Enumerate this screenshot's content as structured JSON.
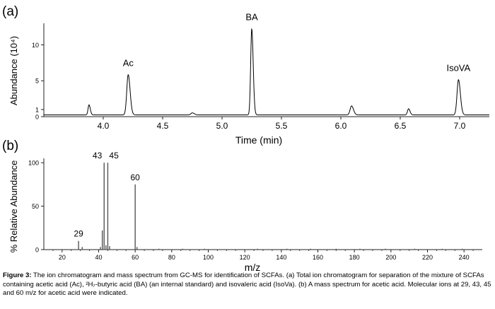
{
  "figure": {
    "caption_label": "Figure 3:",
    "caption_text": "The ion chromatogram and mass spectrum from GC-MS for identification of SCFAs. (a) Total ion chromatogram for separation of the mixture of SCFAs containing acetic acid (Ac), ²H₇-butyric acid (BA) (an internal standard) and isovaleric acid (IsoVa). (b) A mass spectrum for acetic acid. Molecular ions at 29, 43, 45 and 60 m/z for acetic acid were indicated."
  },
  "chart_data": [
    {
      "type": "line",
      "panel_label": "(a)",
      "xlabel": "Time (min)",
      "ylabel": "Abundance (10⁴)",
      "xlim": [
        3.5,
        7.25
      ],
      "ylim": [
        0,
        13
      ],
      "x_ticks": [
        4.0,
        4.5,
        5.0,
        5.5,
        6.0,
        6.5,
        7.0
      ],
      "x_tick_labels": [
        "4.0",
        "4.5",
        "5.0",
        "5.5",
        "6.0",
        "6.5",
        "7.0"
      ],
      "y_ticks": [
        0,
        1,
        5,
        10
      ],
      "y_tick_labels": [
        "0",
        "1",
        "5",
        "10"
      ],
      "baseline": 0.25,
      "peaks": [
        {
          "time": 3.88,
          "height": 1.4,
          "width": 0.008,
          "label": ""
        },
        {
          "time": 4.21,
          "height": 5.6,
          "width": 0.012,
          "label": "Ac"
        },
        {
          "time": 4.75,
          "height": 0.28,
          "width": 0.012,
          "label": ""
        },
        {
          "time": 5.25,
          "height": 12.0,
          "width": 0.009,
          "label": "BA"
        },
        {
          "time": 6.09,
          "height": 1.25,
          "width": 0.012,
          "label": ""
        },
        {
          "time": 6.57,
          "height": 0.85,
          "width": 0.009,
          "label": ""
        },
        {
          "time": 6.99,
          "height": 4.9,
          "width": 0.012,
          "label": "IsoVA"
        }
      ],
      "color": "#000000"
    },
    {
      "type": "bar",
      "panel_label": "(b)",
      "xlabel": "m/z",
      "ylabel": "% Relative Abundance",
      "xlim": [
        10,
        250
      ],
      "ylim": [
        0,
        105
      ],
      "x_ticks": [
        20,
        40,
        60,
        80,
        100,
        120,
        140,
        160,
        180,
        200,
        220,
        240
      ],
      "x_tick_labels": [
        "20",
        "40",
        "60",
        "80",
        "100",
        "120",
        "140",
        "160",
        "180",
        "200",
        "220",
        "240"
      ],
      "y_ticks": [
        0,
        50,
        100
      ],
      "y_tick_labels": [
        "0",
        "50",
        "100"
      ],
      "peaks": [
        {
          "mz": 29,
          "value": 10,
          "label": "29"
        },
        {
          "mz": 31,
          "value": 3,
          "label": ""
        },
        {
          "mz": 41,
          "value": 3,
          "label": ""
        },
        {
          "mz": 42,
          "value": 22,
          "label": ""
        },
        {
          "mz": 43,
          "value": 100,
          "label": "43"
        },
        {
          "mz": 44,
          "value": 5,
          "label": ""
        },
        {
          "mz": 45,
          "value": 100,
          "label": "45"
        },
        {
          "mz": 46,
          "value": 4,
          "label": ""
        },
        {
          "mz": 60,
          "value": 75,
          "label": "60"
        },
        {
          "mz": 61,
          "value": 3,
          "label": ""
        },
        {
          "mz": 73,
          "value": 1,
          "label": ""
        },
        {
          "mz": 86,
          "value": 1,
          "label": ""
        },
        {
          "mz": 98,
          "value": 1,
          "label": ""
        },
        {
          "mz": 127,
          "value": 1,
          "label": ""
        },
        {
          "mz": 143,
          "value": 1,
          "label": ""
        },
        {
          "mz": 156,
          "value": 1,
          "label": ""
        },
        {
          "mz": 170,
          "value": 1,
          "label": ""
        },
        {
          "mz": 183,
          "value": 1,
          "label": ""
        },
        {
          "mz": 197,
          "value": 1,
          "label": ""
        },
        {
          "mz": 213,
          "value": 1,
          "label": ""
        },
        {
          "mz": 228,
          "value": 1,
          "label": ""
        },
        {
          "mz": 239,
          "value": 1,
          "label": ""
        }
      ],
      "color": "#555555"
    }
  ]
}
